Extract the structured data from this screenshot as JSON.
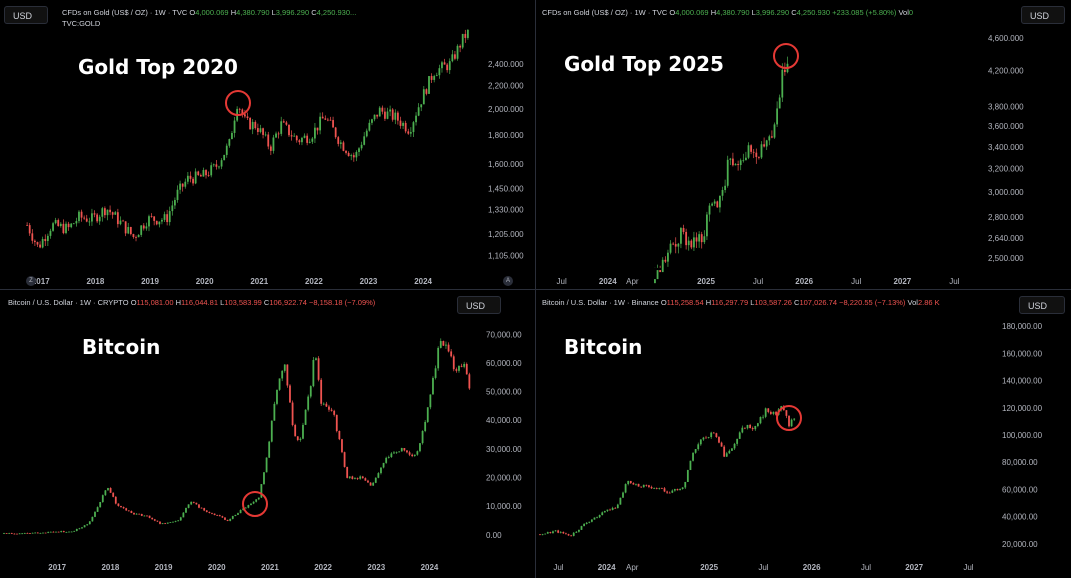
{
  "panels": [
    {
      "usd_label": "USD",
      "legend": {
        "symbol": "CFDs on Gold (US$ / OZ) · 1W · TVC",
        "o_label": "O",
        "o": "4,000.069",
        "h_label": "H",
        "h": "4,380.790",
        "l_label": "L",
        "l": "3,996.290",
        "c_label": "C",
        "c": "4,250.930...",
        "change": ""
      },
      "sub": "TVC:GOLD",
      "title": "Gold Top 2020"
    },
    {
      "usd_label": "USD",
      "legend": {
        "symbol": "CFDs on Gold (US$ / OZ) · 1W · TVC",
        "o_label": "O",
        "o": "4,000.069",
        "h_label": "H",
        "h": "4,380.790",
        "l_label": "L",
        "l": "3,996.290",
        "c_label": "C",
        "c": "4,250.930",
        "change": "+233.085 (+5.80%)",
        "vol_label": "Vol",
        "vol": "0"
      },
      "title": "Gold Top 2025"
    },
    {
      "usd_label": "USD",
      "legend": {
        "symbol": "Bitcoin / U.S. Dollar · 1W · CRYPTO",
        "o_label": "O",
        "o": "115,081.00",
        "h_label": "H",
        "h": "116,044.81",
        "l_label": "L",
        "l": "103,583.99",
        "c_label": "C",
        "c": "106,922.74",
        "change": "−8,158.18 (−7.09%)"
      },
      "title": "Bitcoin"
    },
    {
      "usd_label": "USD",
      "legend": {
        "symbol": "Bitcoin / U.S. Dollar · 1W · Binance",
        "o_label": "O",
        "o": "115,258.54",
        "h_label": "H",
        "h": "116,297.79",
        "l_label": "L",
        "l": "103,587.26",
        "c_label": "C",
        "c": "107,026.74",
        "change": "−8,220.55 (−7.13%)",
        "vol_label": "Vol",
        "vol": "2.86 K"
      },
      "title": "Bitcoin"
    }
  ],
  "icons": {
    "left": "Z",
    "right": "A"
  },
  "colors": {
    "up": "#4caf50",
    "down": "#ef5350",
    "circle": "#e53935",
    "background": "#000000",
    "text": "#d1d4dc"
  },
  "chart_data": [
    {
      "type": "candlestick",
      "title": "Gold Top 2020",
      "x_ticks": [
        "2017",
        "2018",
        "2019",
        "2020",
        "2021",
        "2022",
        "2023",
        "2024"
      ],
      "y_ticks": [
        "2,400.000",
        "2,200.000",
        "2,000.000",
        "1,800.000",
        "1,600.000",
        "1,450.000",
        "1,330.000",
        "1,205.000",
        "1,105.000"
      ],
      "ylim": [
        1050,
        2700
      ],
      "log_scale": true,
      "series": [
        [
          2016.75,
          1250
        ],
        [
          2016.95,
          1140
        ],
        [
          2017.2,
          1250
        ],
        [
          2017.5,
          1230
        ],
        [
          2017.7,
          1290
        ],
        [
          2017.95,
          1280
        ],
        [
          2018.2,
          1340
        ],
        [
          2018.5,
          1250
        ],
        [
          2018.7,
          1190
        ],
        [
          2018.95,
          1280
        ],
        [
          2019.3,
          1280
        ],
        [
          2019.5,
          1420
        ],
        [
          2019.7,
          1510
        ],
        [
          2019.95,
          1520
        ],
        [
          2020.2,
          1580
        ],
        [
          2020.45,
          1730
        ],
        [
          2020.6,
          2060
        ],
        [
          2020.75,
          1890
        ],
        [
          2020.95,
          1870
        ],
        [
          2021.2,
          1710
        ],
        [
          2021.4,
          1880
        ],
        [
          2021.7,
          1760
        ],
        [
          2021.95,
          1800
        ],
        [
          2022.2,
          1940
        ],
        [
          2022.5,
          1740
        ],
        [
          2022.75,
          1640
        ],
        [
          2022.95,
          1820
        ],
        [
          2023.2,
          1990
        ],
        [
          2023.5,
          1930
        ],
        [
          2023.75,
          1840
        ],
        [
          2023.95,
          2060
        ],
        [
          2024.2,
          2330
        ],
        [
          2024.5,
          2400
        ],
        [
          2024.75,
          2680
        ],
        [
          2024.82,
          2720
        ]
      ],
      "annotation": {
        "x": 2020.6,
        "y": 2060
      }
    },
    {
      "type": "candlestick",
      "title": "Gold Top 2025",
      "x_ticks": [
        "Jul",
        "2024",
        "Apr",
        "2025",
        "Jul",
        "2026",
        "Jul",
        "2027",
        "Jul"
      ],
      "y_ticks": [
        "4,600.000",
        "4,200.000",
        "3,800.000",
        "3,600.000",
        "3,400.000",
        "3,200.000",
        "3,000.000",
        "2,800.000",
        "2,640.000",
        "2,500.000"
      ],
      "ylim": [
        2430,
        4700
      ],
      "log_scale": true,
      "series": [
        [
          2024.48,
          2330
        ],
        [
          2024.6,
          2500
        ],
        [
          2024.75,
          2660
        ],
        [
          2024.85,
          2620
        ],
        [
          2024.95,
          2640
        ],
        [
          2025.05,
          2860
        ],
        [
          2025.15,
          2960
        ],
        [
          2025.25,
          3300
        ],
        [
          2025.35,
          3320
        ],
        [
          2025.45,
          3360
        ],
        [
          2025.55,
          3340
        ],
        [
          2025.65,
          3450
        ],
        [
          2025.72,
          3760
        ],
        [
          2025.8,
          4250
        ],
        [
          2025.83,
          4380
        ]
      ],
      "annotation": {
        "x": 2025.8,
        "y": 4380
      }
    },
    {
      "type": "candlestick",
      "title": "Bitcoin",
      "x_ticks": [
        "2017",
        "2018",
        "2019",
        "2020",
        "2021",
        "2022",
        "2023",
        "2024"
      ],
      "y_ticks": [
        "70,000.00",
        "60,000.00",
        "50,000.00",
        "40,000.00",
        "30,000.00",
        "20,000.00",
        "10,000.00",
        "0.00"
      ],
      "ylim": [
        -6000,
        75000
      ],
      "log_scale": false,
      "series": [
        [
          2016.0,
          420
        ],
        [
          2016.5,
          650
        ],
        [
          2016.9,
          900
        ],
        [
          2017.3,
          1300
        ],
        [
          2017.6,
          4000
        ],
        [
          2017.95,
          17000
        ],
        [
          2018.1,
          11000
        ],
        [
          2018.4,
          7500
        ],
        [
          2018.7,
          6500
        ],
        [
          2018.95,
          3800
        ],
        [
          2019.3,
          5000
        ],
        [
          2019.5,
          12000
        ],
        [
          2019.8,
          8000
        ],
        [
          2019.95,
          7200
        ],
        [
          2020.2,
          5000
        ],
        [
          2020.5,
          9200
        ],
        [
          2020.65,
          11000
        ],
        [
          2020.8,
          13500
        ],
        [
          2020.95,
          28000
        ],
        [
          2021.1,
          48000
        ],
        [
          2021.28,
          60000
        ],
        [
          2021.45,
          35000
        ],
        [
          2021.55,
          32000
        ],
        [
          2021.75,
          50000
        ],
        [
          2021.85,
          66000
        ],
        [
          2021.95,
          47000
        ],
        [
          2022.2,
          42000
        ],
        [
          2022.45,
          20000
        ],
        [
          2022.7,
          20000
        ],
        [
          2022.9,
          17000
        ],
        [
          2023.2,
          27000
        ],
        [
          2023.5,
          30000
        ],
        [
          2023.75,
          27000
        ],
        [
          2023.95,
          42000
        ],
        [
          2024.2,
          68000
        ],
        [
          2024.35,
          64000
        ],
        [
          2024.5,
          57000
        ],
        [
          2024.65,
          60000
        ],
        [
          2024.75,
          52000
        ]
      ],
      "annotation": {
        "x": 2020.7,
        "y": 11000
      }
    },
    {
      "type": "candlestick",
      "title": "Bitcoin",
      "x_ticks": [
        "Jul",
        "2024",
        "Apr",
        "2025",
        "Jul",
        "2026",
        "Jul",
        "2027",
        "Jul"
      ],
      "y_ticks": [
        "180,000.00",
        "160,000.00",
        "140,000.00",
        "120,000.00",
        "100,000.00",
        "80,000.00",
        "60,000.00",
        "40,000.00",
        "20,000.00"
      ],
      "ylim": [
        14000,
        186000
      ],
      "log_scale": false,
      "series": [
        [
          2023.35,
          27000
        ],
        [
          2023.5,
          29500
        ],
        [
          2023.65,
          26000
        ],
        [
          2023.8,
          35000
        ],
        [
          2023.95,
          42000
        ],
        [
          2024.1,
          48000
        ],
        [
          2024.2,
          66000
        ],
        [
          2024.3,
          63000
        ],
        [
          2024.45,
          62000
        ],
        [
          2024.6,
          58000
        ],
        [
          2024.75,
          62000
        ],
        [
          2024.85,
          90000
        ],
        [
          2024.95,
          98000
        ],
        [
          2025.05,
          102000
        ],
        [
          2025.15,
          85000
        ],
        [
          2025.25,
          94000
        ],
        [
          2025.35,
          107000
        ],
        [
          2025.45,
          106000
        ],
        [
          2025.55,
          118000
        ],
        [
          2025.65,
          115000
        ],
        [
          2025.7,
          122000
        ],
        [
          2025.78,
          108000
        ],
        [
          2025.83,
          111000
        ]
      ],
      "annotation": {
        "x": 2025.77,
        "y": 113000
      }
    }
  ]
}
